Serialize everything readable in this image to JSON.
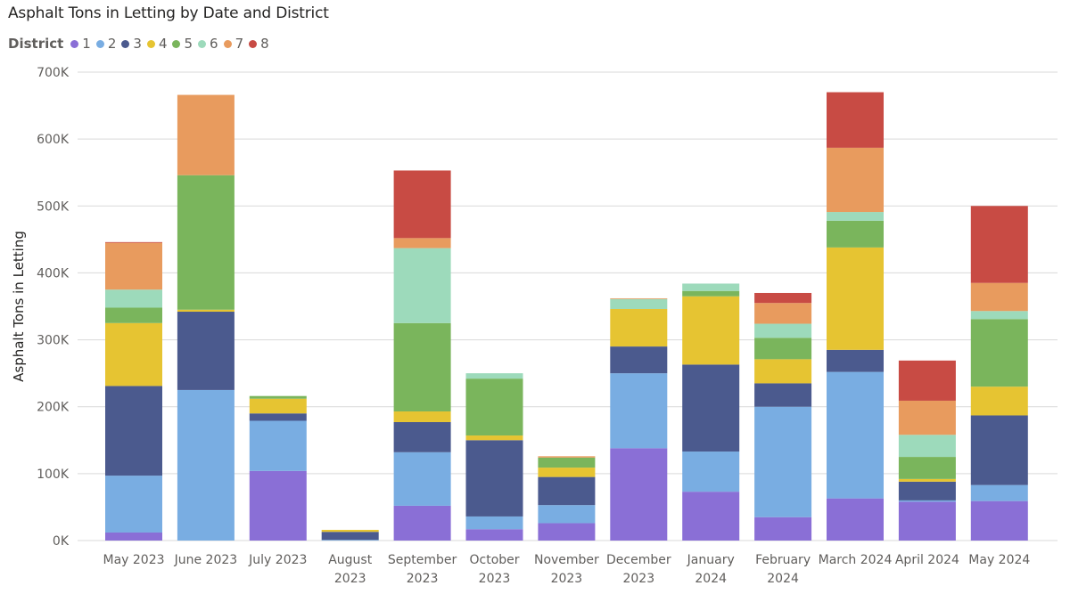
{
  "chart_data": {
    "type": "bar",
    "stacked": true,
    "title": "Asphalt Tons in Letting by Date and District",
    "xlabel": "",
    "ylabel": "Asphalt Tons in Letting",
    "ylim": [
      0,
      700000
    ],
    "yticks": [
      0,
      100000,
      200000,
      300000,
      400000,
      500000,
      600000,
      700000
    ],
    "ytick_labels": [
      "0K",
      "100K",
      "200K",
      "300K",
      "400K",
      "500K",
      "600K",
      "700K"
    ],
    "grid": true,
    "legend_title": "District",
    "legend_position": "top-left",
    "categories": [
      [
        "May 2023"
      ],
      [
        "June 2023"
      ],
      [
        "July 2023"
      ],
      [
        "August",
        "2023"
      ],
      [
        "September",
        "2023"
      ],
      [
        "October",
        "2023"
      ],
      [
        "November",
        "2023"
      ],
      [
        "December",
        "2023"
      ],
      [
        "January",
        "2024"
      ],
      [
        "February",
        "2024"
      ],
      [
        "March 2024"
      ],
      [
        "April 2024"
      ],
      [
        "May 2024"
      ]
    ],
    "series": [
      {
        "name": "1",
        "color": "#8a6fd6",
        "values": [
          12000,
          0,
          104000,
          0,
          52000,
          17000,
          26000,
          138000,
          73000,
          35000,
          63000,
          58000,
          59000
        ]
      },
      {
        "name": "2",
        "color": "#79ade2",
        "values": [
          85000,
          225000,
          75000,
          1000,
          80000,
          19000,
          27000,
          112000,
          60000,
          165000,
          189000,
          2000,
          24000
        ]
      },
      {
        "name": "3",
        "color": "#4b5a8e",
        "values": [
          134000,
          117000,
          11000,
          12000,
          45000,
          114000,
          42000,
          40000,
          130000,
          35000,
          33000,
          28000,
          104000
        ]
      },
      {
        "name": "4",
        "color": "#e6c432",
        "values": [
          94000,
          3000,
          22000,
          3000,
          16000,
          7000,
          14000,
          56000,
          102000,
          36000,
          153000,
          4000,
          43000
        ]
      },
      {
        "name": "5",
        "color": "#7ab55c",
        "values": [
          23000,
          201000,
          4000,
          0,
          132000,
          85000,
          15000,
          0,
          8000,
          32000,
          40000,
          33000,
          101000
        ]
      },
      {
        "name": "6",
        "color": "#9ddabb",
        "values": [
          27000,
          0,
          0,
          0,
          112000,
          8000,
          0,
          15000,
          11000,
          21000,
          13000,
          33000,
          12000
        ]
      },
      {
        "name": "7",
        "color": "#e89b5e",
        "values": [
          70000,
          120000,
          0,
          0,
          15000,
          0,
          2000,
          1000,
          0,
          31000,
          96000,
          51000,
          42000
        ]
      },
      {
        "name": "8",
        "color": "#c84b44",
        "values": [
          1000,
          0,
          0,
          0,
          101000,
          0,
          0,
          0,
          0,
          15000,
          83000,
          60000,
          115000
        ]
      }
    ]
  }
}
